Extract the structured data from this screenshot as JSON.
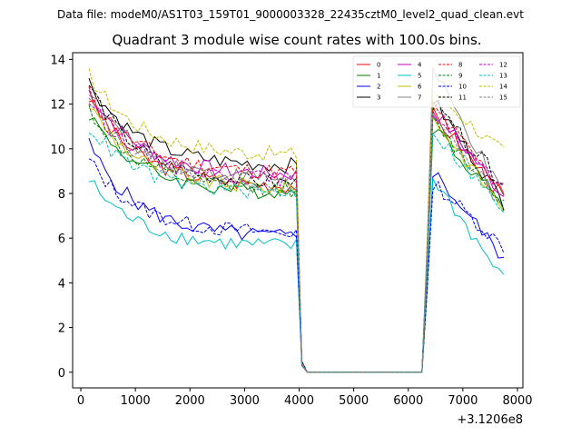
{
  "chart_data": {
    "type": "line",
    "suptitle": "Data file: modeM0/AS1T03_159T01_9000003328_22435cztM0_level2_quad_clean.evt",
    "title": "Quadrant 3 module wise count rates with 100.0s bins.",
    "xlabel": "",
    "ylabel": "",
    "x_offset_label": "+3.1206e8",
    "xlim": [
      -150,
      8100
    ],
    "ylim": [
      -0.7,
      14.3
    ],
    "xticks": [
      0,
      1000,
      2000,
      3000,
      4000,
      5000,
      6000,
      7000,
      8000
    ],
    "yticks": [
      0,
      2,
      4,
      6,
      8,
      10,
      12,
      14
    ],
    "tick_labels_x": [
      "0",
      "1000",
      "2000",
      "3000",
      "4000",
      "5000",
      "6000",
      "7000",
      "8000"
    ],
    "tick_labels_y": [
      "0",
      "2",
      "4",
      "6",
      "8",
      "10",
      "12",
      "14"
    ],
    "legend_location": "top-right",
    "legend_columns": 4,
    "series": [
      {
        "name": "0",
        "color": "#ff0000",
        "dash": "solid",
        "start": 12.3,
        "plateau": 8.3,
        "noise": 0.35,
        "recover": 11.6,
        "end": 7.8
      },
      {
        "name": "1",
        "color": "#008000",
        "dash": "solid",
        "start": 11.6,
        "plateau": 8.0,
        "noise": 0.35,
        "recover": 11.0,
        "end": 7.5
      },
      {
        "name": "2",
        "color": "#0000ff",
        "dash": "solid",
        "start": 10.2,
        "plateau": 6.0,
        "noise": 0.35,
        "recover": 9.0,
        "end": 5.1
      },
      {
        "name": "3",
        "color": "#000000",
        "dash": "solid",
        "start": 13.0,
        "plateau": 9.2,
        "noise": 0.35,
        "recover": 12.2,
        "end": 7.6
      },
      {
        "name": "4",
        "color": "#bf00bf",
        "dash": "solid",
        "start": 12.6,
        "plateau": 8.8,
        "noise": 0.35,
        "recover": 11.8,
        "end": 7.9
      },
      {
        "name": "5",
        "color": "#00bfbf",
        "dash": "solid",
        "start": 8.6,
        "plateau": 5.6,
        "noise": 0.35,
        "recover": 8.7,
        "end": 4.1
      },
      {
        "name": "6",
        "color": "#bfbf00",
        "dash": "solid",
        "start": 12.0,
        "plateau": 8.2,
        "noise": 0.35,
        "recover": 11.4,
        "end": 7.3
      },
      {
        "name": "7",
        "color": "#808080",
        "dash": "solid",
        "start": 12.7,
        "plateau": 8.6,
        "noise": 0.35,
        "recover": 13.5,
        "end": 7.8
      },
      {
        "name": "8",
        "color": "#ff0000",
        "dash": "dashed",
        "start": 12.5,
        "plateau": 8.9,
        "noise": 0.35,
        "recover": 11.9,
        "end": 8.1
      },
      {
        "name": "9",
        "color": "#008000",
        "dash": "dashed",
        "start": 11.8,
        "plateau": 8.1,
        "noise": 0.35,
        "recover": 11.2,
        "end": 7.6
      },
      {
        "name": "10",
        "color": "#0000ff",
        "dash": "dashed",
        "start": 9.5,
        "plateau": 6.2,
        "noise": 0.35,
        "recover": 8.5,
        "end": 5.6
      },
      {
        "name": "11",
        "color": "#000000",
        "dash": "dashed",
        "start": 12.9,
        "plateau": 8.4,
        "noise": 0.35,
        "recover": 12.0,
        "end": 8.4
      },
      {
        "name": "12",
        "color": "#bf00bf",
        "dash": "dashed",
        "start": 12.2,
        "plateau": 8.6,
        "noise": 0.35,
        "recover": 11.7,
        "end": 8.0
      },
      {
        "name": "13",
        "color": "#00bfbf",
        "dash": "dashed",
        "start": 11.0,
        "plateau": 8.0,
        "noise": 0.35,
        "recover": 10.8,
        "end": 7.2
      },
      {
        "name": "14",
        "color": "#bfbf00",
        "dash": "dashed",
        "start": 13.3,
        "plateau": 9.7,
        "noise": 0.35,
        "recover": 12.6,
        "end": 9.8
      },
      {
        "name": "15",
        "color": "#808080",
        "dash": "dashed",
        "start": 12.1,
        "plateau": 8.3,
        "noise": 0.35,
        "recover": 11.5,
        "end": 7.4
      }
    ],
    "segments": {
      "active1": [
        150,
        3950
      ],
      "gap": [
        4150,
        6250
      ],
      "active2": [
        6450,
        7750
      ],
      "bin": 100
    }
  }
}
